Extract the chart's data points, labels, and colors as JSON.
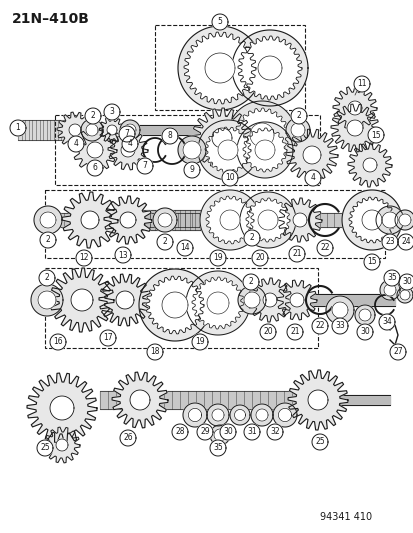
{
  "title": "21N–410B",
  "part_number": "94341 410",
  "background_color": "#ffffff",
  "figsize": [
    4.14,
    5.33
  ],
  "dpi": 100,
  "title_fontsize": 10,
  "title_fontweight": "bold",
  "part_number_fontsize": 7
}
